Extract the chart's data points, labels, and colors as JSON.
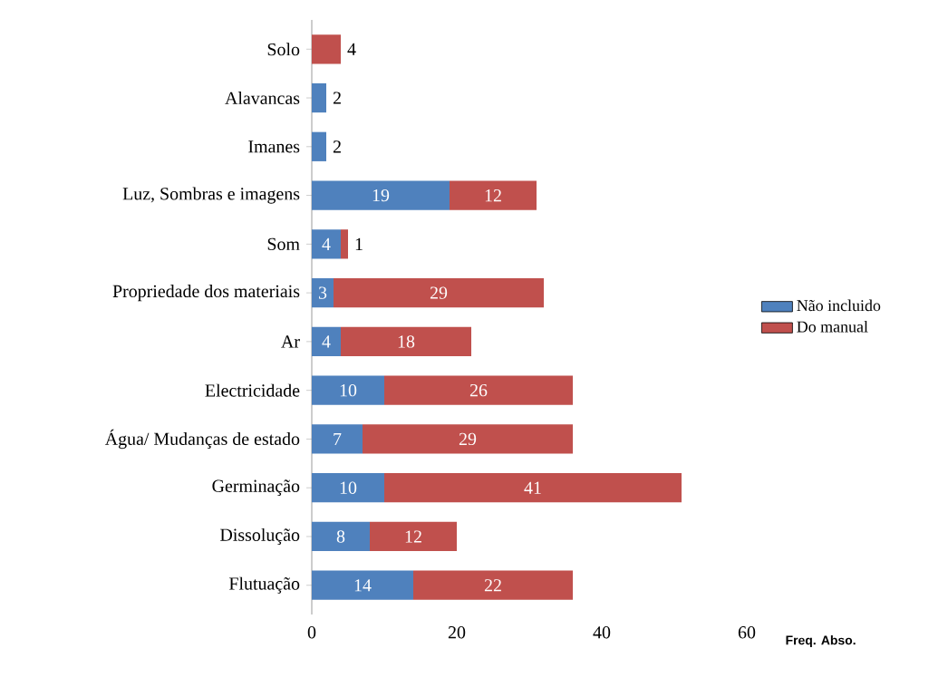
{
  "chart_data": {
    "type": "bar",
    "orientation": "horizontal",
    "stacked": true,
    "xlabel": "Freq. Abso.",
    "categories": [
      "Solo",
      "Alavancas",
      "Imanes",
      "Luz, Sombras e imagens",
      "Som",
      "Propriedade dos materiais",
      "Ar",
      "Electricidade",
      "Água/ Mudanças de estado",
      "Germinação",
      "Dissolução",
      "Flutuação"
    ],
    "series": [
      {
        "name": "Não incluido",
        "color": "#4f81bd",
        "values": [
          null,
          2,
          2,
          19,
          4,
          3,
          4,
          10,
          7,
          10,
          8,
          14
        ]
      },
      {
        "name": "Do manual",
        "color": "#c0504d",
        "values": [
          4,
          null,
          null,
          12,
          1,
          29,
          18,
          26,
          29,
          41,
          12,
          22
        ]
      }
    ],
    "xlim": [
      0,
      60
    ],
    "xticks": [
      0,
      20,
      40,
      60
    ],
    "data_labels": true,
    "legend": "right",
    "grid": false
  }
}
